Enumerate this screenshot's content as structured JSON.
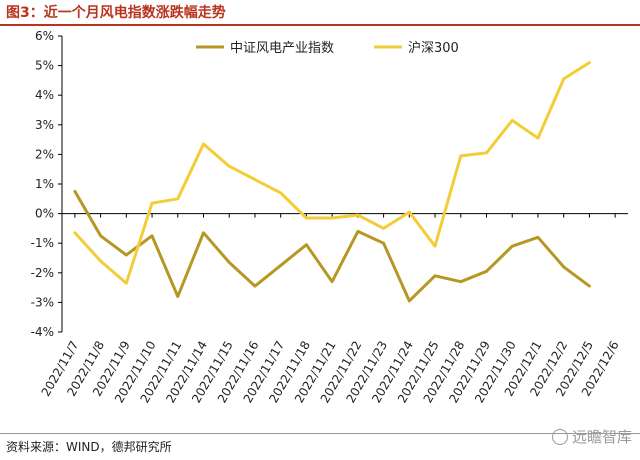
{
  "header": {
    "title": "图3：近一个月风电指数涨跌幅走势"
  },
  "footer": {
    "source": "资料来源：WIND，德邦研究所",
    "watermark": "远瞻智库"
  },
  "chart_data": {
    "type": "line",
    "title": "",
    "xlabel": "",
    "ylabel": "",
    "categories": [
      "2022/11/7",
      "2022/11/8",
      "2022/11/9",
      "2022/11/10",
      "2022/11/11",
      "2022/11/14",
      "2022/11/15",
      "2022/11/16",
      "2022/11/17",
      "2022/11/18",
      "2022/11/21",
      "2022/11/22",
      "2022/11/23",
      "2022/11/24",
      "2022/11/25",
      "2022/11/28",
      "2022/11/29",
      "2022/11/30",
      "2022/12/1",
      "2022/12/2",
      "2022/12/5",
      "2022/12/6"
    ],
    "ylim": [
      -4,
      6
    ],
    "yticks": [
      "-4%",
      "-3%",
      "-2%",
      "-1%",
      "0%",
      "1%",
      "2%",
      "3%",
      "4%",
      "5%",
      "6%"
    ],
    "grid": false,
    "legend_position": "top",
    "series": [
      {
        "name": "中证风电产业指数",
        "color": "#b79724",
        "values": [
          0.75,
          -0.75,
          -1.4,
          -0.75,
          -2.8,
          -0.65,
          -1.65,
          -2.45,
          -1.75,
          -1.05,
          -2.3,
          -0.6,
          -1.0,
          -2.95,
          -2.1,
          -2.3,
          -1.95,
          -1.1,
          -0.8,
          -1.8,
          -2.45,
          null
        ]
      },
      {
        "name": "沪深300",
        "color": "#f2cd37",
        "values": [
          -0.65,
          -1.6,
          -2.35,
          0.35,
          0.5,
          2.35,
          1.6,
          1.15,
          0.7,
          -0.15,
          -0.15,
          -0.05,
          -0.5,
          0.05,
          -1.1,
          1.95,
          2.05,
          3.15,
          2.55,
          4.55,
          5.1,
          null
        ]
      }
    ]
  }
}
